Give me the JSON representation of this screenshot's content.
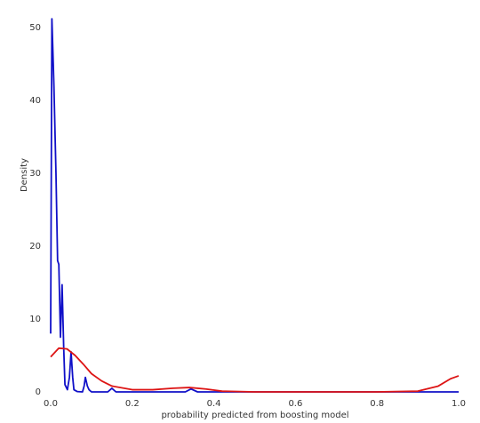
{
  "chart_data": {
    "type": "line",
    "x_label": "probability predicted from boosting model",
    "y_label": "Density",
    "xlim": [
      0,
      1.0
    ],
    "ylim": [
      0,
      50
    ],
    "xticks": [
      {
        "value": 0,
        "label": "0.0"
      },
      0.2,
      0.4,
      0.6,
      0.8,
      {
        "value": 1.0,
        "label": "1.0"
      }
    ],
    "yticks": [
      0,
      10,
      20,
      30,
      40,
      50
    ],
    "grid": false,
    "series": [
      {
        "color": "#1010c8",
        "x": [
          0.0,
          0.003,
          0.008,
          0.013,
          0.017,
          0.02,
          0.024,
          0.028,
          0.032,
          0.035,
          0.041,
          0.046,
          0.05,
          0.054,
          0.057,
          0.065,
          0.078,
          0.082,
          0.085,
          0.09,
          0.094,
          0.1,
          0.14,
          0.15,
          0.16,
          0.33,
          0.344,
          0.36,
          1.0
        ],
        "values": [
          8,
          51.2,
          42,
          30,
          18,
          17.5,
          7.5,
          14.7,
          6,
          1,
          0.3,
          2,
          5.5,
          2,
          0.3,
          0.05,
          0,
          0.8,
          2,
          0.8,
          0.3,
          0,
          0,
          0.5,
          0,
          0,
          0.4,
          0,
          0
        ]
      },
      {
        "color": "#dd1414",
        "x": [
          0.0,
          0.02,
          0.04,
          0.06,
          0.08,
          0.1,
          0.125,
          0.15,
          0.2,
          0.25,
          0.3,
          0.34,
          0.38,
          0.42,
          0.5,
          0.8,
          0.9,
          0.95,
          0.98,
          1.0
        ],
        "values": [
          4.8,
          6,
          5.9,
          5,
          3.8,
          2.5,
          1.5,
          0.8,
          0.3,
          0.3,
          0.5,
          0.6,
          0.4,
          0.1,
          0,
          0,
          0.1,
          0.8,
          1.8,
          2.2
        ]
      }
    ]
  }
}
